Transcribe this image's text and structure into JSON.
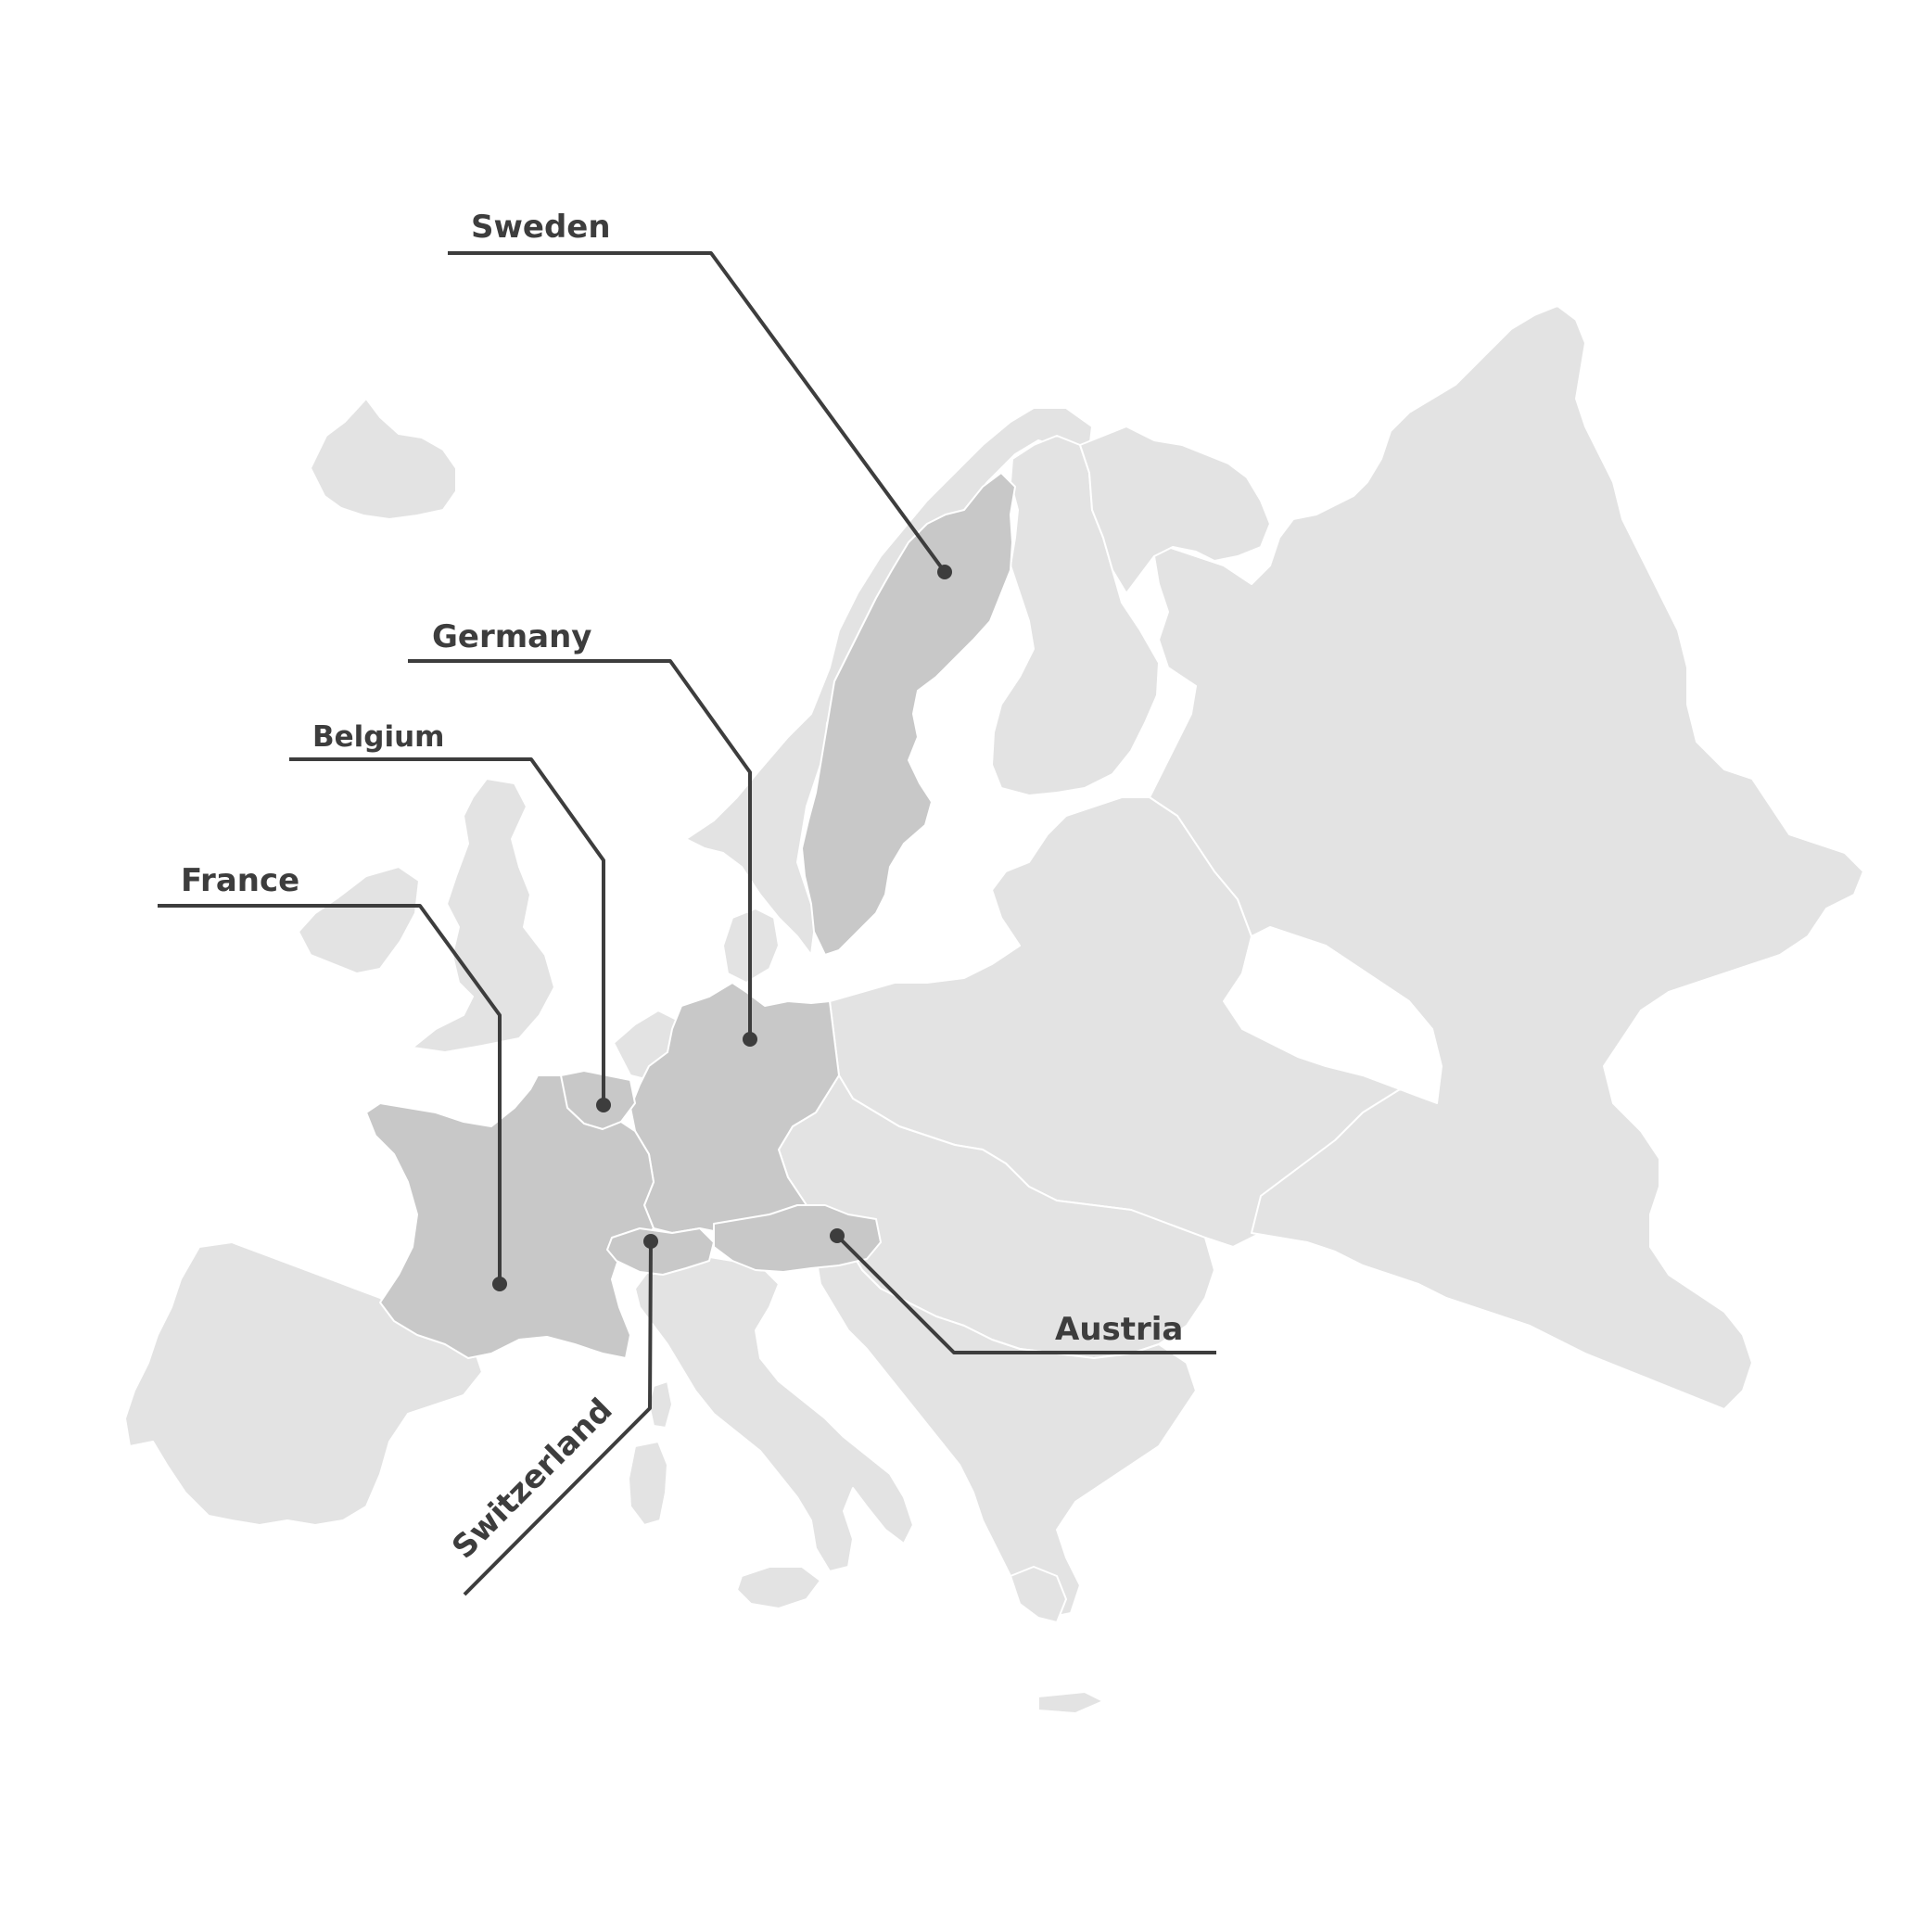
{
  "map": {
    "colors": {
      "base_country": "#e3e3e3",
      "highlight_country": "#c8c8c8",
      "borders": "#ffffff",
      "leader_line": "#3d3d3d",
      "label_text": "#3d3d3d",
      "background": "#ffffff"
    },
    "highlighted_countries": [
      "Sweden",
      "Germany",
      "Belgium",
      "France",
      "Switzerland",
      "Austria"
    ],
    "labels": {
      "sweden": "Sweden",
      "germany": "Germany",
      "belgium": "Belgium",
      "france": "France",
      "switzerland": "Switzerland",
      "austria": "Austria"
    }
  }
}
